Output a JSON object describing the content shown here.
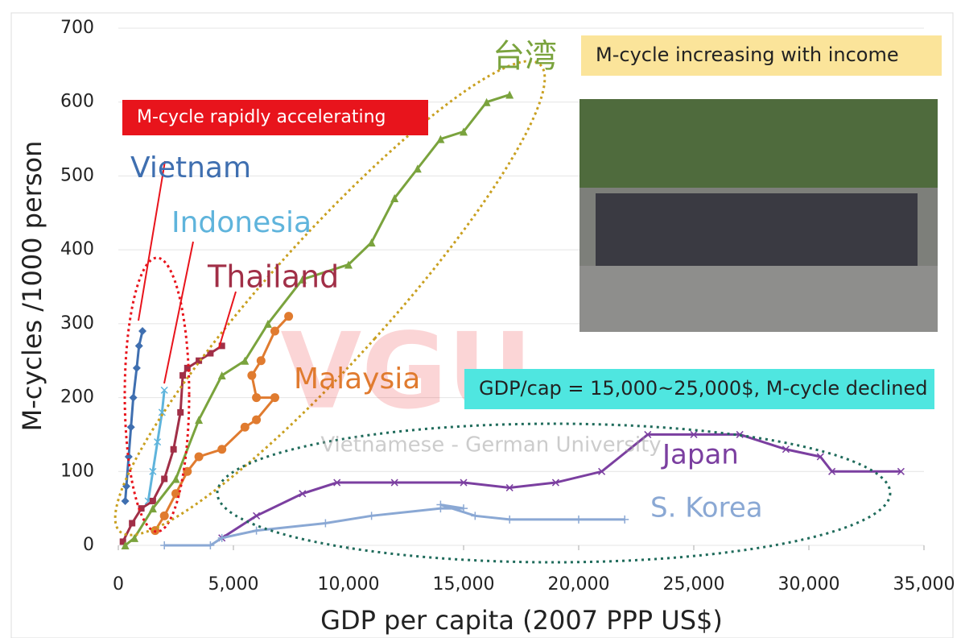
{
  "chart_data": {
    "type": "line",
    "ylabel": "M-cycles /1000 person",
    "xlabel": "GDP per capita (2007 PPP US$)",
    "xlim": [
      0,
      35000
    ],
    "ylim": [
      0,
      700
    ],
    "xticks": [
      0,
      {
        "value": 5000,
        "label": "5,000"
      },
      {
        "value": 10000,
        "label": "10,000"
      },
      {
        "value": 15000,
        "label": "15,000"
      },
      {
        "value": 20000,
        "label": "20,000"
      },
      {
        "value": 25000,
        "label": "25,000"
      },
      {
        "value": 30000,
        "label": "30,000"
      },
      {
        "value": 35000,
        "label": "35,000"
      }
    ],
    "yticks": [
      0,
      100,
      200,
      300,
      400,
      500,
      600,
      700
    ],
    "grid": true,
    "series": [
      {
        "name": "Vietnam",
        "color": "#3f6fb0",
        "marker": "diamond",
        "x": [
          300,
          350,
          450,
          550,
          650,
          800,
          900,
          1050
        ],
        "values": [
          60,
          80,
          120,
          160,
          200,
          240,
          270,
          290
        ]
      },
      {
        "name": "Indonesia",
        "color": "#5fb4dc",
        "marker": "cross",
        "x": [
          1300,
          1500,
          1700,
          1900,
          2000
        ],
        "values": [
          60,
          100,
          140,
          180,
          210
        ]
      },
      {
        "name": "Thailand",
        "color": "#a12f47",
        "marker": "square",
        "x": [
          200,
          600,
          1000,
          1500,
          2000,
          2400,
          2700,
          2800,
          3000,
          3500,
          4000,
          4500
        ],
        "values": [
          5,
          30,
          50,
          60,
          90,
          130,
          180,
          230,
          240,
          250,
          260,
          270
        ]
      },
      {
        "name": "Malaysia",
        "color": "#e07b2f",
        "marker": "circle",
        "x": [
          1600,
          2000,
          2500,
          3000,
          3500,
          4500,
          5500,
          6000,
          6800,
          6000,
          5800,
          6200,
          6800,
          7400
        ],
        "values": [
          20,
          40,
          70,
          100,
          120,
          130,
          160,
          170,
          200,
          200,
          230,
          250,
          290,
          310
        ]
      },
      {
        "name": "台湾",
        "color": "#7aa33d",
        "marker": "triangle",
        "x": [
          300,
          700,
          1500,
          2500,
          3500,
          4500,
          5500,
          6500,
          8000,
          10000,
          11000,
          12000,
          13000,
          14000,
          15000,
          16000,
          17000
        ],
        "values": [
          0,
          10,
          50,
          90,
          170,
          230,
          250,
          300,
          360,
          380,
          410,
          470,
          510,
          550,
          560,
          600,
          610
        ]
      },
      {
        "name": "Japan",
        "color": "#7b3fa0",
        "marker": "x",
        "x": [
          4500,
          6000,
          8000,
          9500,
          12000,
          15000,
          17000,
          19000,
          21000,
          23000,
          25000,
          27000,
          29000,
          30500,
          31000,
          34000
        ],
        "values": [
          10,
          40,
          70,
          85,
          85,
          85,
          78,
          85,
          100,
          150,
          150,
          150,
          130,
          120,
          100,
          100
        ]
      },
      {
        "name": "S. Korea",
        "color": "#8aa8d4",
        "marker": "plus",
        "x": [
          2000,
          4000,
          4500,
          6000,
          9000,
          11000,
          14000,
          15000,
          14000,
          15500,
          17000,
          20000,
          22000
        ],
        "values": [
          0,
          0,
          10,
          20,
          30,
          40,
          50,
          50,
          55,
          40,
          35,
          35,
          35
        ]
      }
    ],
    "annotations": [
      {
        "text": "M-cycle rapidly accelerating",
        "color": "#e8141c"
      },
      {
        "text": "M-cycle increasing with income",
        "color": "#fbe49a"
      },
      {
        "text": "GDP/cap = 15,000~25,000$, M-cycle declined",
        "color": "#4fe6e0"
      }
    ],
    "watermark": {
      "logo": "VGU",
      "text": "Vietnamese - German University"
    }
  }
}
